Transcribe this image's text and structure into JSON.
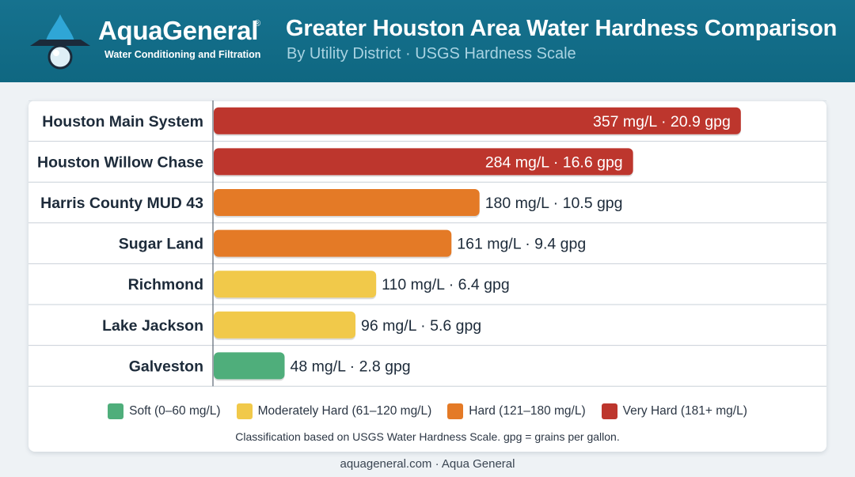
{
  "brand": {
    "name": "AquaGeneral",
    "registered_mark": "®",
    "tagline": "Water Conditioning and Filtration"
  },
  "chart_data": {
    "type": "bar",
    "orientation": "horizontal",
    "title": "Greater Houston Area Water Hardness Comparison",
    "subtitle": "By Utility District · USGS Hardness Scale",
    "categories": [
      "Houston Main System",
      "Houston Willow Chase",
      "Harris County MUD 43",
      "Sugar Land",
      "Richmond",
      "Lake Jackson",
      "Galveston"
    ],
    "values_mg_per_l": [
      357,
      284,
      180,
      161,
      110,
      96,
      48
    ],
    "values_gpg": [
      20.9,
      16.6,
      10.5,
      9.4,
      6.4,
      5.6,
      2.8
    ],
    "data_labels": [
      "357 mg/L · 20.9 gpg",
      "284 mg/L · 16.6 gpg",
      "180 mg/L · 10.5 gpg",
      "161 mg/L · 9.4 gpg",
      "110 mg/L · 6.4 gpg",
      "96 mg/L · 5.6 gpg",
      "48 mg/L · 2.8 gpg"
    ],
    "bar_classes": [
      "very_hard",
      "very_hard",
      "hard",
      "hard",
      "moderate",
      "moderate",
      "soft"
    ],
    "xlim": [
      0,
      400
    ],
    "grid": false,
    "legend_position": "bottom",
    "legend": [
      {
        "key": "soft",
        "label": "Soft (0–60 mg/L)",
        "color": "#4fae7b"
      },
      {
        "key": "moderate",
        "label": "Moderately Hard (61–120 mg/L)",
        "color": "#f1c94a"
      },
      {
        "key": "hard",
        "label": "Hard (121–180 mg/L)",
        "color": "#e47a26"
      },
      {
        "key": "very_hard",
        "label": "Very Hard (181+ mg/L)",
        "color": "#bd362d"
      }
    ]
  },
  "footnote": "Classification based on USGS Water Hardness Scale. gpg = grains per gallon.",
  "footer": "aquageneral.com · Aqua General",
  "colors": {
    "header_bg": "#16728f",
    "subtitle": "#a9d3e2"
  }
}
